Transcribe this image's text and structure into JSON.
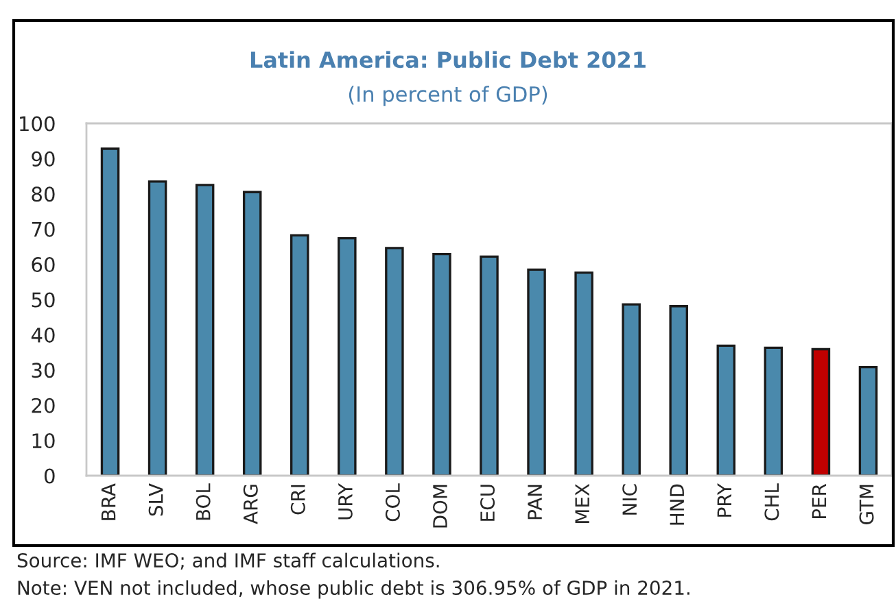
{
  "chart_data": {
    "type": "bar",
    "title": "Latin America: Public Debt 2021",
    "subtitle": "(In percent of GDP)",
    "categories": [
      "BRA",
      "SLV",
      "BOL",
      "ARG",
      "CRI",
      "URY",
      "COL",
      "DOM",
      "ECU",
      "PAN",
      "MEX",
      "NIC",
      "HND",
      "PRY",
      "CHL",
      "PER",
      "GTM"
    ],
    "values": [
      92.8,
      83.5,
      82.5,
      80.5,
      68.2,
      67.4,
      64.6,
      62.9,
      62.2,
      58.5,
      57.6,
      48.6,
      48.1,
      36.9,
      36.3,
      35.9,
      30.8
    ],
    "colors": [
      "#4a89ac",
      "#4a89ac",
      "#4a89ac",
      "#4a89ac",
      "#4a89ac",
      "#4a89ac",
      "#4a89ac",
      "#4a89ac",
      "#4a89ac",
      "#4a89ac",
      "#4a89ac",
      "#4a89ac",
      "#4a89ac",
      "#4a89ac",
      "#4a89ac",
      "#c00000",
      "#4a89ac"
    ],
    "ylim": [
      0,
      100
    ],
    "yticks": [
      0,
      10,
      20,
      30,
      40,
      50,
      60,
      70,
      80,
      90,
      100
    ],
    "grid": false,
    "legend": false,
    "annotations": [
      "Source: IMF WEO; and IMF staff calculations.",
      "Note: VEN not included, whose public debt is 306.95% of GDP in 2021."
    ]
  }
}
